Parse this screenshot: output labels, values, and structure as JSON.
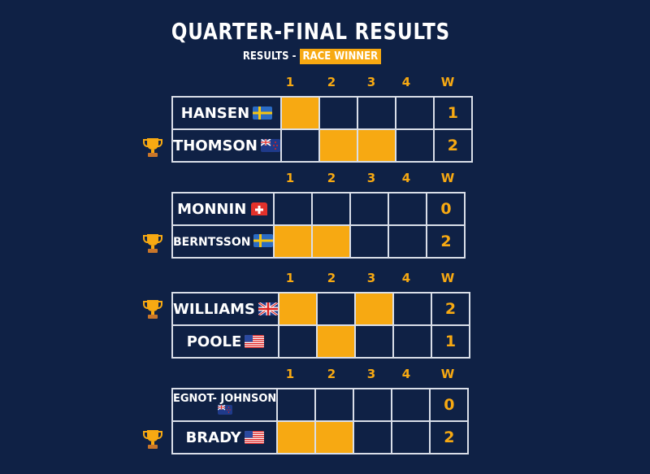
{
  "title": "QUARTER-FINAL RESULTS",
  "subtitle_prefix": "RESULTS -",
  "subtitle_highlight": "RACE WINNER",
  "columns": [
    "1",
    "2",
    "3",
    "4",
    "W"
  ],
  "colors": {
    "background": "#0f2145",
    "highlight": "#f7a912",
    "grid": "#d9dee8"
  },
  "matches": [
    {
      "rows": [
        {
          "name": "HANSEN",
          "flag": "sweden",
          "wins": "1",
          "races": [
            true,
            false,
            false,
            false
          ],
          "winner": false
        },
        {
          "name": "THOMSON",
          "flag": "new-zealand",
          "wins": "2",
          "races": [
            false,
            true,
            true,
            false
          ],
          "winner": true
        }
      ]
    },
    {
      "rows": [
        {
          "name": "MONNIN",
          "flag": "switzerland",
          "wins": "0",
          "races": [
            false,
            false,
            false,
            false
          ],
          "winner": false
        },
        {
          "name": "BERNTSSON",
          "flag": "sweden",
          "wins": "2",
          "races": [
            true,
            true,
            false,
            false
          ],
          "winner": true
        }
      ]
    },
    {
      "rows": [
        {
          "name": "WILLIAMS",
          "flag": "united-kingdom",
          "wins": "2",
          "races": [
            true,
            false,
            true,
            false
          ],
          "winner": true
        },
        {
          "name": "POOLE",
          "flag": "united-states",
          "wins": "1",
          "races": [
            false,
            true,
            false,
            false
          ],
          "winner": false
        }
      ]
    },
    {
      "rows": [
        {
          "name": "EGNOT- JOHNSON",
          "flag": "new-zealand",
          "wins": "0",
          "races": [
            false,
            false,
            false,
            false
          ],
          "winner": false
        },
        {
          "name": "BRADY",
          "flag": "united-states",
          "wins": "2",
          "races": [
            true,
            true,
            false,
            false
          ],
          "winner": true
        }
      ]
    }
  ]
}
